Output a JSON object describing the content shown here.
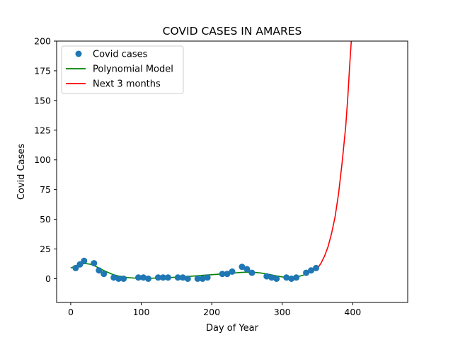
{
  "chart_data": {
    "type": "scatter",
    "title": "COVID CASES IN AMARES",
    "xlabel": "Day of Year",
    "ylabel": "Covid Cases",
    "xlim": [
      -20,
      478
    ],
    "ylim": [
      -20,
      200
    ],
    "x_ticks": [
      0,
      100,
      200,
      300,
      400
    ],
    "y_ticks": [
      0,
      25,
      50,
      75,
      100,
      125,
      150,
      175,
      200
    ],
    "grid": false,
    "legend_position": "upper-left",
    "series": [
      {
        "name": "Covid cases",
        "kind": "scatter",
        "color": "#1f77b4",
        "points": [
          [
            7,
            9
          ],
          [
            13,
            12
          ],
          [
            19,
            15
          ],
          [
            33,
            13
          ],
          [
            40,
            7
          ],
          [
            47,
            4
          ],
          [
            61,
            1
          ],
          [
            68,
            0
          ],
          [
            75,
            0
          ],
          [
            96,
            1
          ],
          [
            103,
            1
          ],
          [
            110,
            0
          ],
          [
            124,
            1
          ],
          [
            131,
            1
          ],
          [
            138,
            1
          ],
          [
            152,
            1
          ],
          [
            159,
            1
          ],
          [
            166,
            0
          ],
          [
            180,
            0
          ],
          [
            187,
            0
          ],
          [
            194,
            1
          ],
          [
            215,
            4
          ],
          [
            222,
            4
          ],
          [
            229,
            6
          ],
          [
            243,
            10
          ],
          [
            250,
            8
          ],
          [
            257,
            5
          ],
          [
            278,
            2
          ],
          [
            285,
            1
          ],
          [
            292,
            0
          ],
          [
            306,
            1
          ],
          [
            313,
            0
          ],
          [
            320,
            1
          ],
          [
            334,
            5
          ],
          [
            341,
            7
          ],
          [
            348,
            9
          ]
        ]
      },
      {
        "name": "Polynomial Model",
        "kind": "line",
        "color": "#008000",
        "points": [
          [
            0,
            9
          ],
          [
            10,
            11.5
          ],
          [
            20,
            12.8
          ],
          [
            30,
            12
          ],
          [
            40,
            9
          ],
          [
            50,
            6
          ],
          [
            60,
            3.5
          ],
          [
            70,
            2
          ],
          [
            80,
            1
          ],
          [
            90,
            0.5
          ],
          [
            100,
            0.3
          ],
          [
            110,
            0.3
          ],
          [
            120,
            0.5
          ],
          [
            130,
            0.8
          ],
          [
            140,
            1
          ],
          [
            150,
            1.3
          ],
          [
            160,
            1.6
          ],
          [
            170,
            2
          ],
          [
            180,
            2.5
          ],
          [
            190,
            3
          ],
          [
            200,
            3.4
          ],
          [
            210,
            3.8
          ],
          [
            220,
            4.2
          ],
          [
            230,
            4.7
          ],
          [
            240,
            5.2
          ],
          [
            250,
            5.5
          ],
          [
            260,
            5.4
          ],
          [
            270,
            4.8
          ],
          [
            280,
            3.8
          ],
          [
            290,
            2.6
          ],
          [
            300,
            1.5
          ],
          [
            310,
            1
          ],
          [
            320,
            1.3
          ],
          [
            330,
            3
          ],
          [
            340,
            5.5
          ],
          [
            350,
            8.5
          ]
        ]
      },
      {
        "name": "Next 3 months",
        "kind": "line",
        "color": "#ff0000",
        "points": [
          [
            350,
            8.5
          ],
          [
            355,
            13
          ],
          [
            360,
            19
          ],
          [
            365,
            27
          ],
          [
            370,
            38
          ],
          [
            375,
            52
          ],
          [
            380,
            72
          ],
          [
            385,
            98
          ],
          [
            390,
            128
          ],
          [
            393,
            152
          ],
          [
            396,
            182
          ],
          [
            398,
            200
          ]
        ]
      }
    ]
  }
}
